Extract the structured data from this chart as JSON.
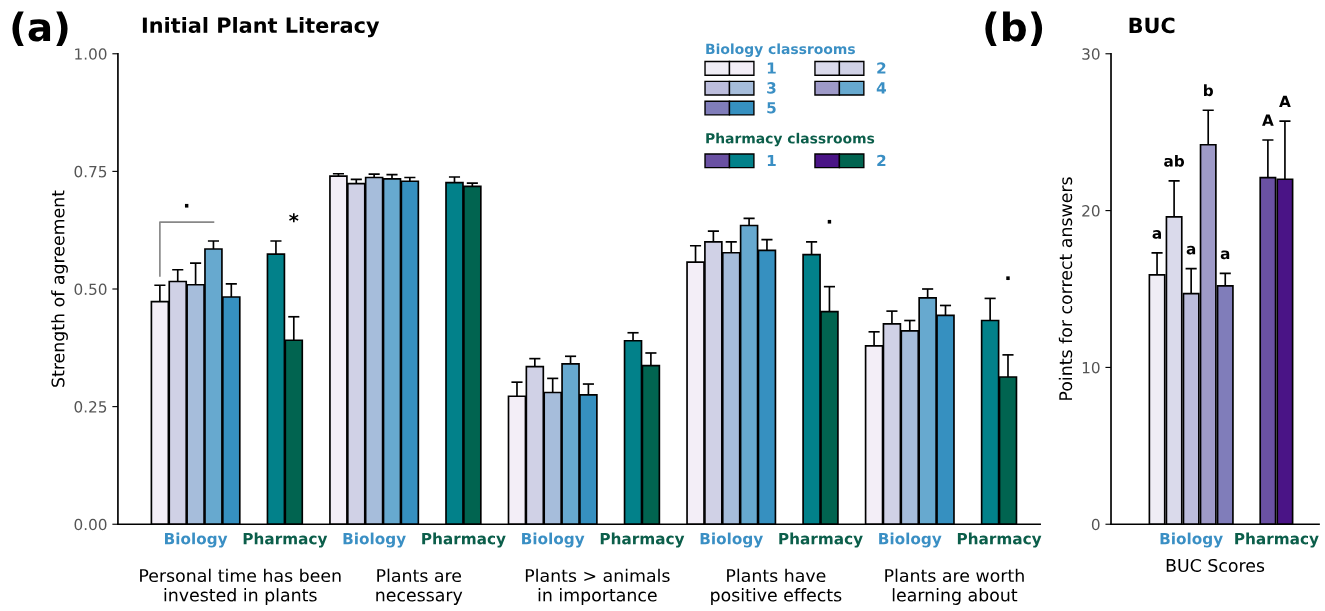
{
  "chart_data": [
    {
      "type": "bar",
      "title": "Initial Plant Literacy",
      "ylabel": "Strength of agreement",
      "categories": [
        "Biology",
        "Pharmacy",
        "Biology",
        "Pharmacy",
        "Biology",
        "Pharmacy",
        "Biology",
        "Pharmacy",
        "Biology",
        "Pharmacy"
      ],
      "series": [
        {
          "name": "1",
          "color": "#f3eef7",
          "values": [
            0.473,
            null,
            0.74,
            null,
            0.272,
            null,
            0.557,
            null,
            0.379,
            null
          ],
          "errors": [
            0.035,
            null,
            0.005,
            null,
            0.03,
            null,
            0.035,
            null,
            0.03,
            null
          ]
        },
        {
          "name": "2",
          "color": "#d0d1e6",
          "values": [
            0.516,
            null,
            0.724,
            null,
            0.335,
            null,
            0.6,
            null,
            0.426,
            null
          ],
          "errors": [
            0.025,
            null,
            0.009,
            null,
            0.017,
            null,
            0.023,
            null,
            0.027,
            null
          ]
        },
        {
          "name": "3",
          "color": "#a6bddb",
          "values": [
            0.509,
            null,
            0.737,
            null,
            0.28,
            null,
            0.577,
            null,
            0.411,
            null
          ],
          "errors": [
            0.046,
            null,
            0.007,
            null,
            0.03,
            null,
            0.023,
            null,
            0.022,
            null
          ]
        },
        {
          "name": "4",
          "color": "#67a9cf",
          "values": [
            0.585,
            null,
            0.734,
            null,
            0.341,
            null,
            0.635,
            null,
            0.481,
            null
          ],
          "errors": [
            0.017,
            null,
            0.009,
            null,
            0.016,
            null,
            0.015,
            null,
            0.019,
            null
          ]
        },
        {
          "name": "5",
          "color": "#3690c0",
          "values": [
            0.483,
            null,
            0.729,
            null,
            0.275,
            null,
            0.582,
            null,
            0.444,
            null
          ],
          "errors": [
            0.028,
            null,
            0.008,
            null,
            0.023,
            null,
            0.023,
            null,
            0.021,
            null
          ]
        },
        {
          "name": "1",
          "color": "#02818a",
          "values": [
            null,
            0.574,
            null,
            0.726,
            null,
            0.39,
            null,
            0.573,
            null,
            0.433
          ],
          "errors": [
            null,
            0.028,
            null,
            0.012,
            null,
            0.017,
            null,
            0.027,
            null,
            0.047
          ]
        },
        {
          "name": "2",
          "color": "#016450",
          "values": [
            null,
            0.391,
            null,
            0.718,
            null,
            0.337,
            null,
            0.452,
            null,
            0.313
          ],
          "errors": [
            null,
            0.05,
            null,
            0.007,
            null,
            0.027,
            null,
            0.053,
            null,
            0.047
          ]
        }
      ],
      "ylim": [
        0,
        1
      ],
      "yticks": [
        {
          "value": 0,
          "label": "0.00"
        },
        {
          "value": 0.25,
          "label": "0.25"
        },
        {
          "value": 0.5,
          "label": "0.50"
        },
        {
          "value": 0.75,
          "label": "0.75"
        },
        {
          "value": 1,
          "label": "1.00"
        }
      ],
      "legend": "top right",
      "legend_title": "Biology classrooms",
      "grid": false,
      "annotations": [
        "(a)",
        "Personal time has been\ninvested in plants",
        "Plants are\nnecessary",
        "Plants > animals\nin importance",
        "Plants have\npositive effects",
        "Plants are worth\nlearning about",
        "·",
        "*",
        "·",
        "·",
        "Pharmacy classrooms"
      ]
    },
    {
      "type": "bar",
      "title": "BUC",
      "ylabel": "Points for correct answers",
      "xlabel": "BUC Scores",
      "categories": [
        "Biology",
        "Pharmacy"
      ],
      "series": [
        {
          "color": "#efedf5",
          "values": [
            15.9,
            null
          ],
          "errors": [
            1.4,
            null
          ]
        },
        {
          "color": "#dadaeb",
          "values": [
            19.6,
            null
          ],
          "errors": [
            2.3,
            null
          ]
        },
        {
          "color": "#bcbddc",
          "values": [
            14.7,
            null
          ],
          "errors": [
            1.6,
            null
          ]
        },
        {
          "color": "#9e9ac8",
          "values": [
            24.2,
            null
          ],
          "errors": [
            2.2,
            null
          ]
        },
        {
          "color": "#807dba",
          "values": [
            15.2,
            null
          ],
          "errors": [
            0.8,
            null
          ]
        },
        {
          "color": "#6a51a3",
          "values": [
            null,
            22.1
          ],
          "errors": [
            null,
            2.4
          ]
        },
        {
          "color": "#4a1486",
          "values": [
            null,
            22.0
          ],
          "errors": [
            null,
            3.7
          ]
        }
      ],
      "ylim": [
        0,
        30
      ],
      "yticks": [
        0,
        10,
        20,
        30
      ],
      "grid": false,
      "annotations": [
        "(b)",
        "a",
        "ab",
        "a",
        "b",
        "a",
        "A",
        "A"
      ]
    }
  ]
}
